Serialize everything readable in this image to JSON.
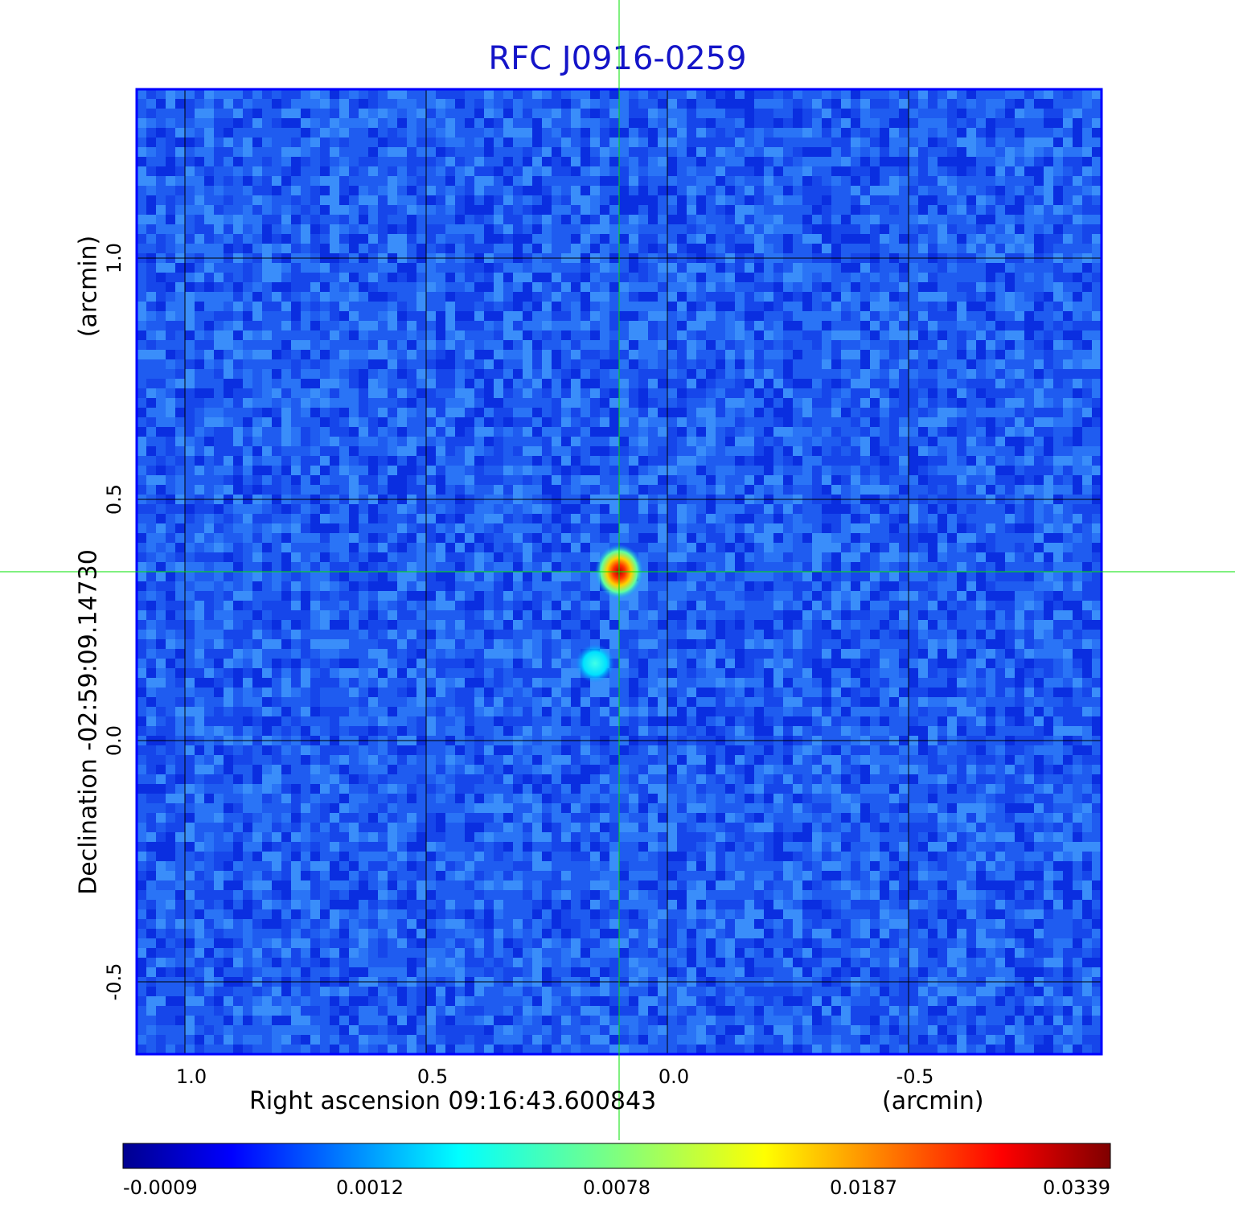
{
  "chart_data": {
    "type": "heatmap",
    "title": "RFC J0916-0259",
    "xlabel": "Right ascension  09:16:43.600843",
    "xunit": "(arcmin)",
    "ylabel": "Declination  -02:59:09.14730",
    "yunit": "(arcmin)",
    "xlim": [
      1.1,
      -0.9
    ],
    "ylim": [
      -0.65,
      1.35
    ],
    "x_ticks": [
      1.0,
      0.5,
      0.0,
      -0.5
    ],
    "x_tick_labels": [
      "1.0",
      "0.5",
      "0.0",
      "-0.5"
    ],
    "y_ticks": [
      1.0,
      0.5,
      0.0,
      -0.5
    ],
    "y_tick_labels": [
      "1.0",
      "0.5",
      "0.0",
      "-0.5"
    ],
    "grid": true,
    "crosshair": {
      "x": 0.1,
      "y": 0.35,
      "color": "#00e000"
    },
    "sources": [
      {
        "x": 0.1,
        "y": 0.35,
        "peak": 0.0339
      },
      {
        "x": 0.15,
        "y": 0.16,
        "peak": 0.0035
      }
    ],
    "colorbar": {
      "colormap": "jet",
      "min": -0.0009,
      "max": 0.0339,
      "ticks": [
        -0.0009,
        0.0012,
        0.0078,
        0.0187,
        0.0339
      ],
      "tick_labels": [
        "-0.0009",
        "0.0012",
        "0.0078",
        "0.0187",
        "0.0339"
      ]
    },
    "colors": {
      "title": "#1414c8",
      "frame": "#0000ff",
      "grid": "#000000"
    }
  }
}
